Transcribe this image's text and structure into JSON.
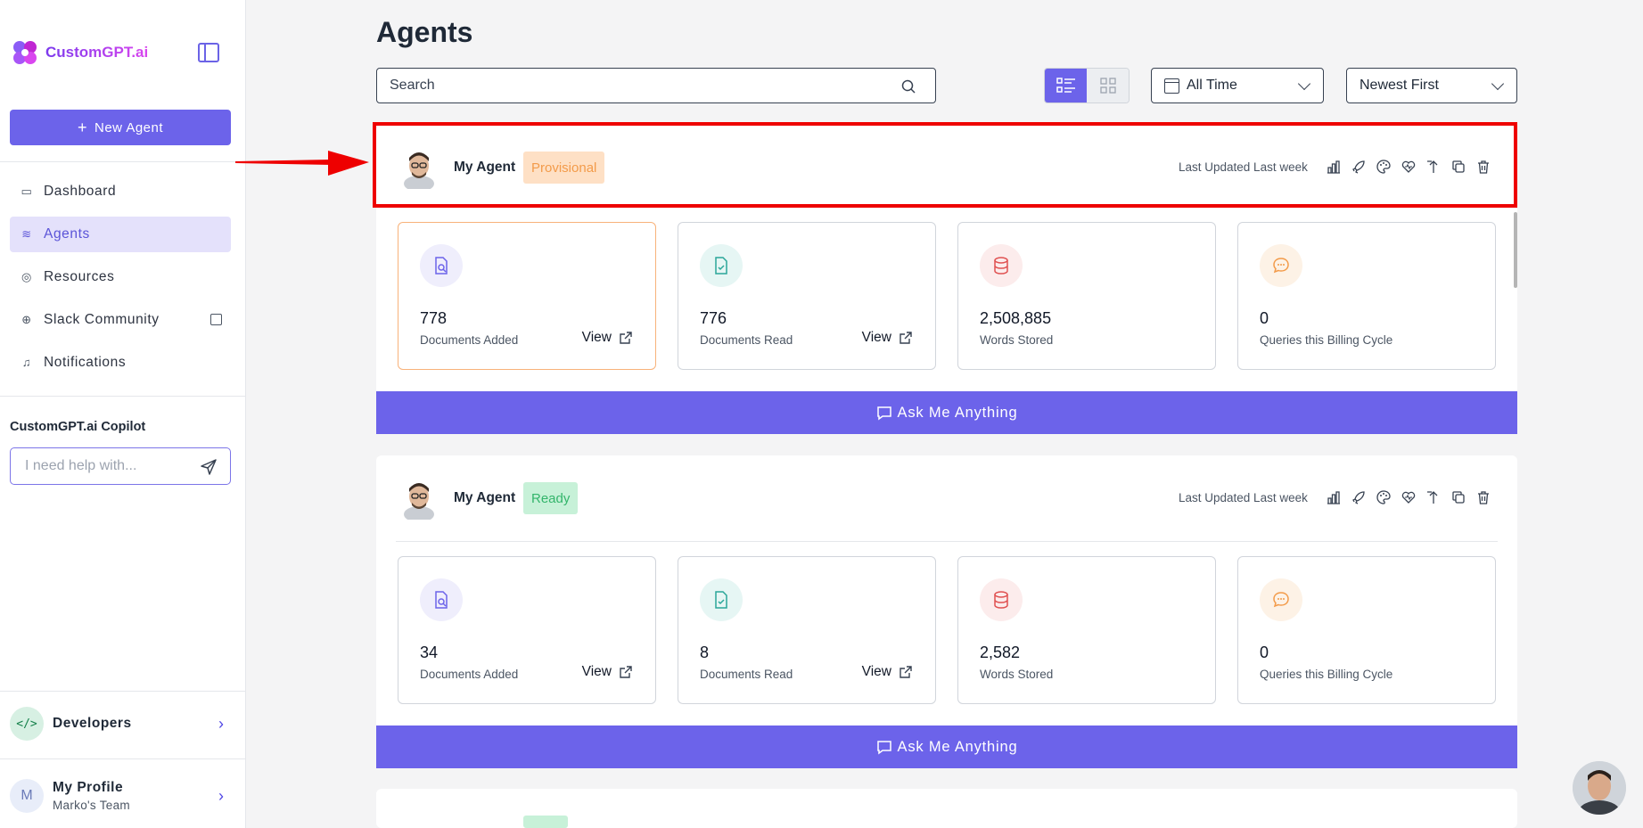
{
  "sidebar": {
    "brand": "CustomGPT.ai",
    "new_agent_label": "New Agent",
    "nav": [
      {
        "label": "Dashboard",
        "icon": "dashboard-icon"
      },
      {
        "label": "Agents",
        "icon": "layers-icon",
        "active": true
      },
      {
        "label": "Resources",
        "icon": "lifebuoy-icon"
      },
      {
        "label": "Slack Community",
        "icon": "globe-icon",
        "external": true
      },
      {
        "label": "Notifications",
        "icon": "bell-icon"
      }
    ],
    "copilot": {
      "title": "CustomGPT.ai Copilot",
      "placeholder": "I need help with..."
    },
    "developers_label": "Developers",
    "profile": {
      "initial": "M",
      "name": "My Profile",
      "team": "Marko's Team"
    }
  },
  "main": {
    "title": "Agents",
    "search_placeholder": "Search",
    "time_filter": "All Time",
    "sort": "Newest First"
  },
  "agents": [
    {
      "name": "My Agent",
      "status": "Provisional",
      "updated": "Last Updated Last week",
      "stats": [
        {
          "value": "778",
          "label": "Documents Added",
          "view": "View"
        },
        {
          "value": "776",
          "label": "Documents Read",
          "view": "View"
        },
        {
          "value": "2,508,885",
          "label": "Words Stored"
        },
        {
          "value": "0",
          "label": "Queries this Billing Cycle"
        }
      ],
      "ask_label": "Ask Me Anything"
    },
    {
      "name": "My Agent",
      "status": "Ready",
      "updated": "Last Updated Last week",
      "stats": [
        {
          "value": "34",
          "label": "Documents Added",
          "view": "View"
        },
        {
          "value": "8",
          "label": "Documents Read",
          "view": "View"
        },
        {
          "value": "2,582",
          "label": "Words Stored"
        },
        {
          "value": "0",
          "label": "Queries this Billing Cycle"
        }
      ],
      "ask_label": "Ask Me Anything"
    }
  ],
  "colors": {
    "accent": "#6c63ea",
    "annotation": "#ee0000",
    "provisional": "#f39b4a",
    "ready": "#33b56b"
  }
}
